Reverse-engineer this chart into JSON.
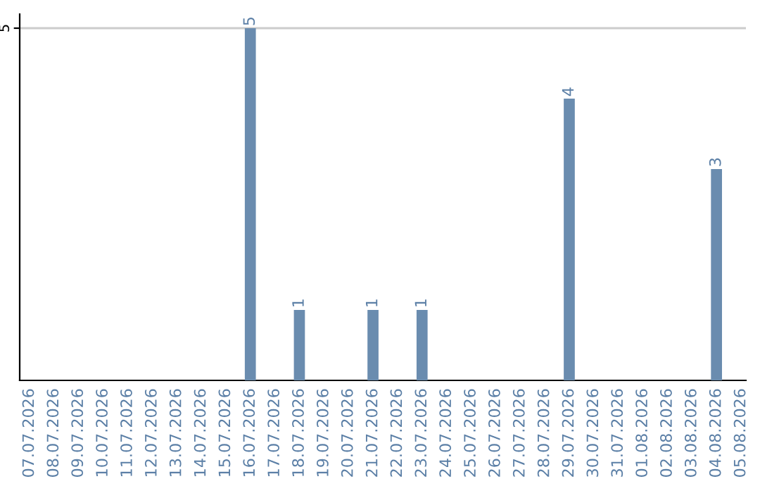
{
  "chart_data": {
    "type": "bar",
    "categories": [
      "07.07.2026",
      "08.07.2026",
      "09.07.2026",
      "10.07.2026",
      "11.07.2026",
      "12.07.2026",
      "13.07.2026",
      "14.07.2026",
      "15.07.2026",
      "16.07.2026",
      "17.07.2026",
      "18.07.2026",
      "19.07.2026",
      "20.07.2026",
      "21.07.2026",
      "22.07.2026",
      "23.07.2026",
      "24.07.2026",
      "25.07.2026",
      "26.07.2026",
      "27.07.2026",
      "28.07.2026",
      "29.07.2026",
      "30.07.2026",
      "31.07.2026",
      "01.08.2026",
      "02.08.2026",
      "03.08.2026",
      "04.08.2026",
      "05.08.2026"
    ],
    "values": [
      0,
      0,
      0,
      0,
      0,
      0,
      0,
      0,
      0,
      5,
      0,
      1,
      0,
      0,
      1,
      0,
      1,
      0,
      0,
      0,
      0,
      0,
      4,
      0,
      0,
      0,
      0,
      0,
      3,
      0
    ],
    "value_labels": [
      null,
      null,
      null,
      null,
      null,
      null,
      null,
      null,
      null,
      "5",
      null,
      "1",
      null,
      null,
      "1",
      null,
      "1",
      null,
      null,
      null,
      null,
      null,
      "4",
      null,
      null,
      null,
      null,
      null,
      "3",
      null
    ],
    "color": "#6a8caf",
    "ylim": [
      0,
      5.2
    ],
    "yticks": [
      5
    ],
    "grid": "y"
  }
}
